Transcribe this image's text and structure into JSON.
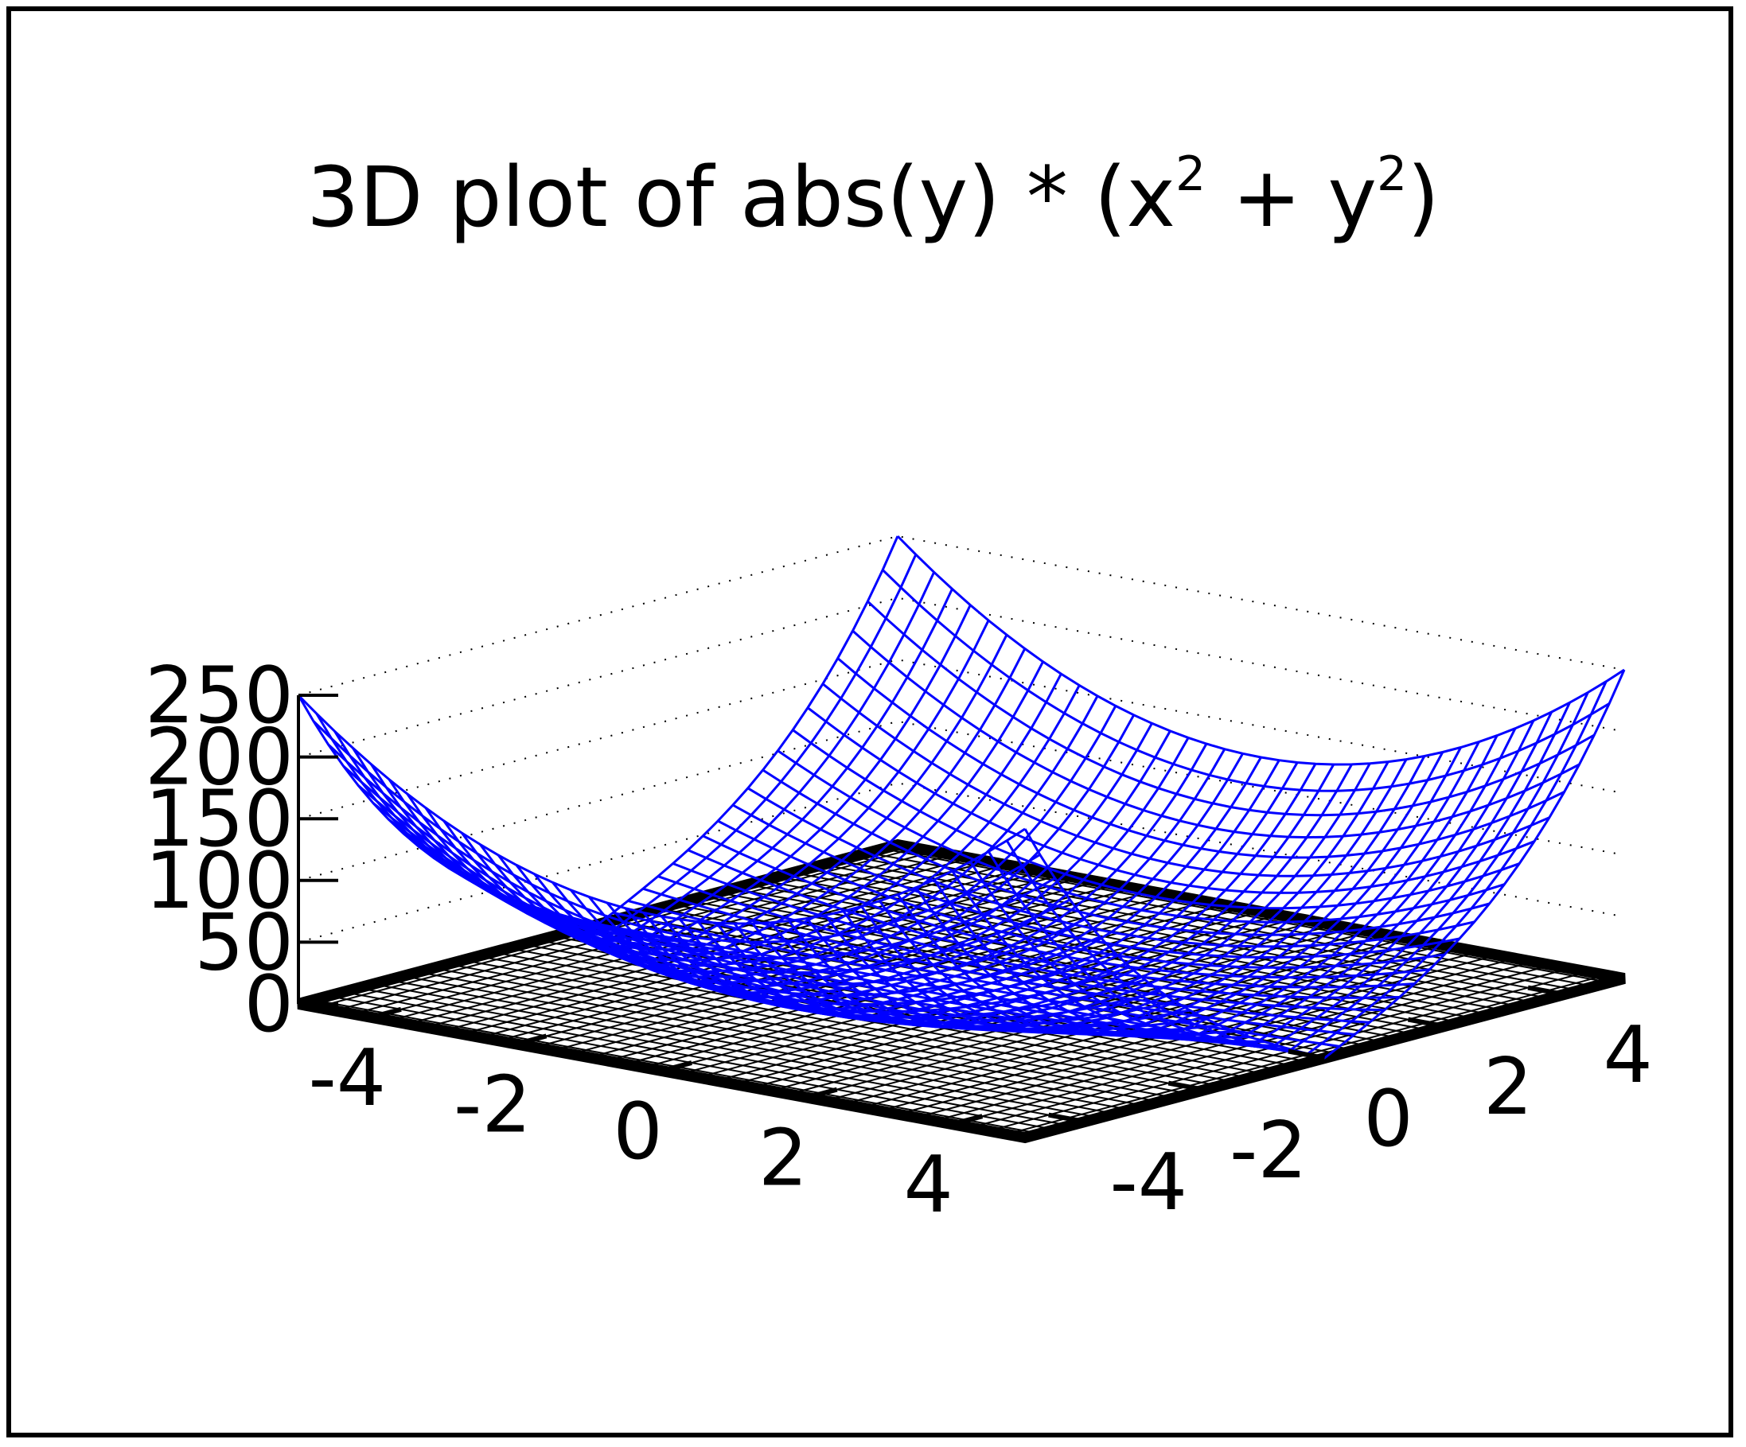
{
  "title": {
    "pre": "3D plot of abs(y) * (x",
    "sup1": "2",
    "mid": " + y",
    "sup2": "2",
    "post": ")"
  },
  "colors": {
    "surface": "#0000ff",
    "axes": "#000000",
    "base_grid": "#000000",
    "background": "#ffffff"
  },
  "chart_data": {
    "type": "surface",
    "function": "abs(y) * (x^2 + y^2)",
    "x": {
      "range": [
        -5,
        5
      ],
      "ticks": [
        -4,
        -2,
        0,
        2,
        4
      ],
      "tick_labels": [
        "-4",
        "-2",
        "0",
        "2",
        "4"
      ]
    },
    "y": {
      "range": [
        -5,
        5
      ],
      "ticks": [
        -4,
        -2,
        0,
        2,
        4
      ],
      "tick_labels": [
        "-4",
        "-2",
        "0",
        "2",
        "4"
      ]
    },
    "z": {
      "range": [
        0,
        250
      ],
      "ticks": [
        0,
        50,
        100,
        150,
        200,
        250
      ],
      "tick_labels": [
        "0",
        "50",
        "100",
        "150",
        "200",
        "250"
      ]
    },
    "samples": 40,
    "grid": true,
    "view": "3d-isometric",
    "base": "mesh grid on xy plane"
  }
}
